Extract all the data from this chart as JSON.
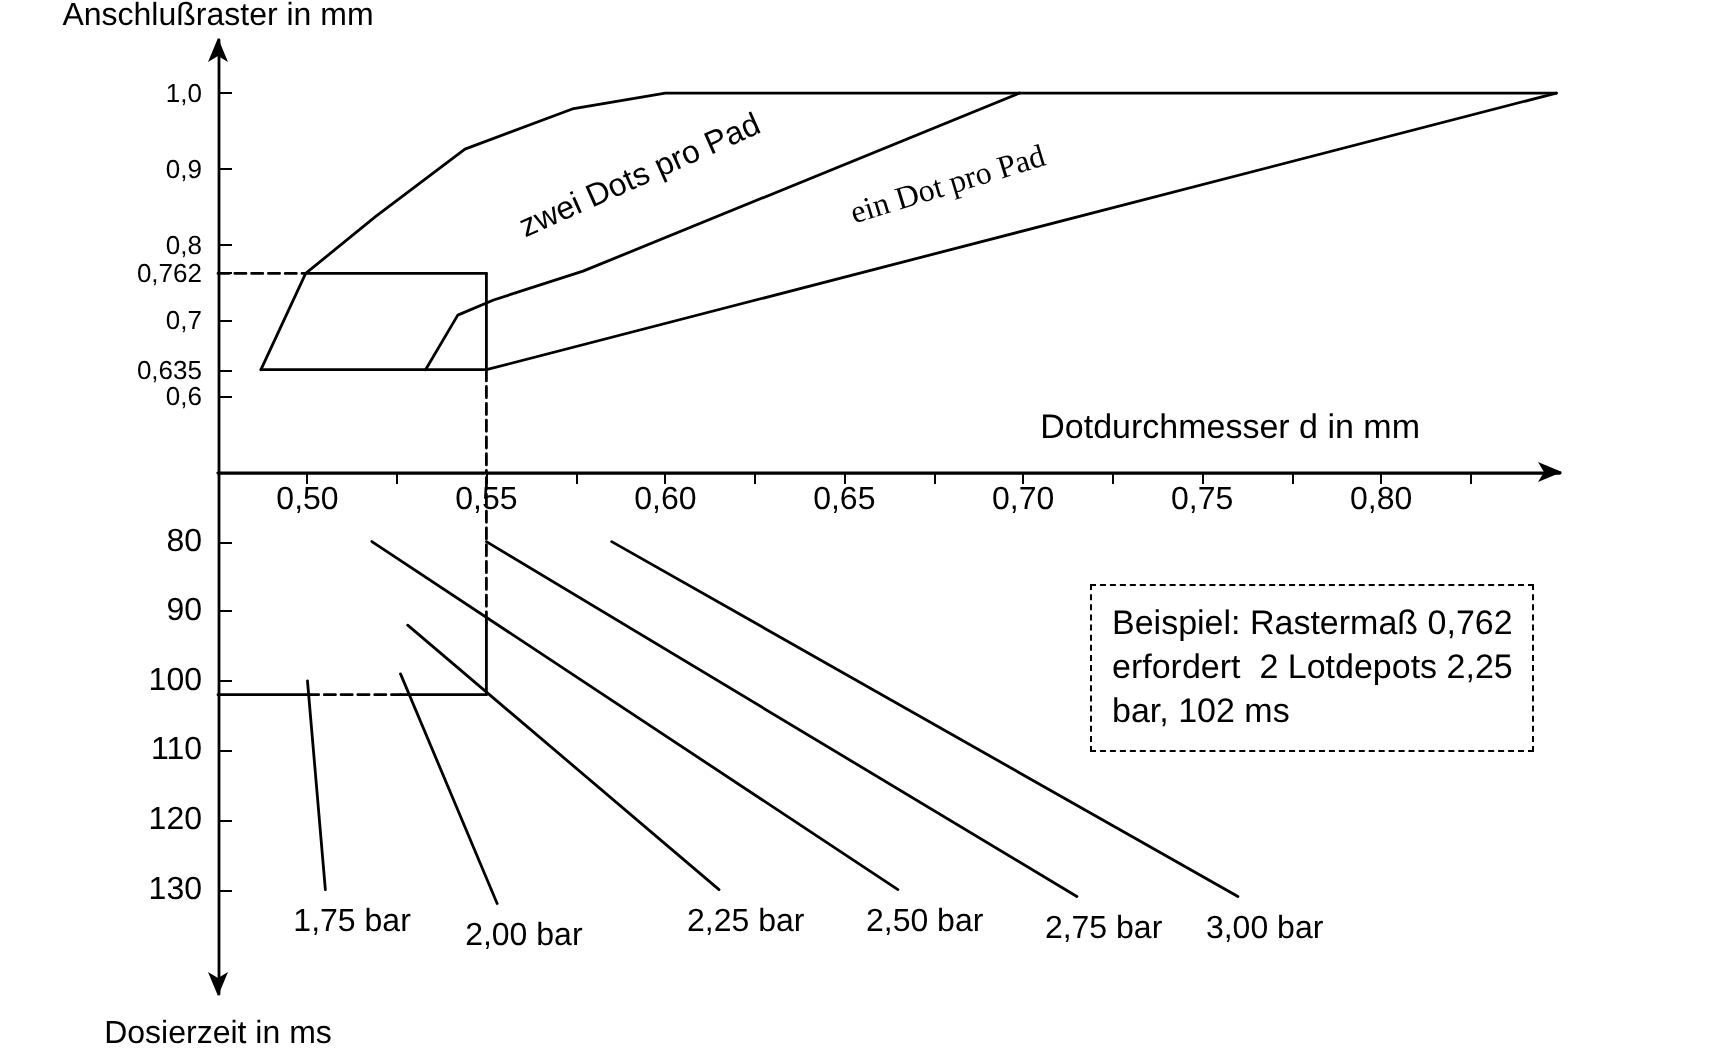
{
  "chart_data": [
    {
      "type": "line",
      "xlabel": "Dotdurchmesser d in mm",
      "ylabel": "Anschlußraster in mm",
      "xlim": [
        0.475,
        0.85
      ],
      "ylim": [
        0.5,
        1.07
      ],
      "xticks": [
        {
          "value": 0.5,
          "label": "0,50"
        },
        {
          "value": 0.525,
          "label": null
        },
        {
          "value": 0.55,
          "label": "0,55"
        },
        {
          "value": 0.575,
          "label": null
        },
        {
          "value": 0.6,
          "label": "0,60"
        },
        {
          "value": 0.625,
          "label": null
        },
        {
          "value": 0.65,
          "label": "0,65"
        },
        {
          "value": 0.675,
          "label": null
        },
        {
          "value": 0.7,
          "label": "0,70"
        },
        {
          "value": 0.725,
          "label": null
        },
        {
          "value": 0.75,
          "label": "0,75"
        },
        {
          "value": 0.775,
          "label": null
        },
        {
          "value": 0.8,
          "label": "0,80"
        },
        {
          "value": 0.825,
          "label": null
        }
      ],
      "yticks": [
        {
          "value": 0.6,
          "label": "0,6"
        },
        {
          "value": 0.635,
          "label": "0,635"
        },
        {
          "value": 0.7,
          "label": "0,7"
        },
        {
          "value": 0.762,
          "label": "0,762"
        },
        {
          "value": 0.8,
          "label": "0,8"
        },
        {
          "value": 0.9,
          "label": "0,9"
        },
        {
          "value": 1.0,
          "label": "1,0"
        }
      ],
      "grid": false,
      "legend": false,
      "line_style": "solid",
      "series": [
        {
          "color": "#000000",
          "x": [
            0.487,
            0.4995,
            0.519,
            0.544,
            0.574,
            0.6,
            0.849
          ],
          "values": [
            0.635,
            0.762,
            0.837,
            0.926,
            0.979,
            1.0,
            1.0
          ]
        },
        {
          "color": "#000000",
          "x": [
            0.487,
            0.55,
            0.849
          ],
          "values": [
            0.635,
            0.635,
            1.0
          ]
        },
        {
          "color": "#000000",
          "x": [
            0.533,
            0.542,
            0.552,
            0.577,
            0.699
          ],
          "values": [
            0.635,
            0.707,
            0.727,
            0.765,
            1.0
          ]
        },
        {
          "color": "#000000",
          "line_style": "dashed",
          "x": [
            0.475,
            0.4995
          ],
          "values": [
            0.762,
            0.762
          ]
        },
        {
          "color": "#000000",
          "x": [
            0.4995,
            0.55
          ],
          "values": [
            0.762,
            0.762
          ]
        },
        {
          "color": "#000000",
          "x": [
            0.55,
            0.55
          ],
          "values": [
            0.762,
            0.635
          ]
        },
        {
          "color": "#000000",
          "line_style": "dashed",
          "x": [
            0.55,
            0.55
          ],
          "values": [
            0.635,
            0.5
          ]
        }
      ],
      "annotations": [
        "zwei Dots pro Pad",
        "ein Dot pro Pad"
      ]
    },
    {
      "type": "line",
      "ylabel": "Dosierzeit in ms",
      "xlim": [
        0.475,
        0.85
      ],
      "ylim": [
        145,
        70
      ],
      "yticks": [
        80,
        90,
        100,
        110,
        120,
        130
      ],
      "tick_labels": "y",
      "grid": false,
      "legend": false,
      "line_style": "solid",
      "series": [
        {
          "name": "1,75 bar",
          "color": "#000000",
          "x": [
            0.5,
            0.505
          ],
          "values": [
            100,
            130
          ]
        },
        {
          "name": "2,00 bar",
          "color": "#000000",
          "x": [
            0.526,
            0.553
          ],
          "values": [
            99,
            132
          ]
        },
        {
          "name": "2,25 bar",
          "color": "#000000",
          "x": [
            0.528,
            0.615
          ],
          "values": [
            92,
            130
          ]
        },
        {
          "name": "2,50 bar",
          "color": "#000000",
          "x": [
            0.518,
            0.665
          ],
          "values": [
            80,
            130
          ]
        },
        {
          "name": "2,75 bar",
          "color": "#000000",
          "x": [
            0.55,
            0.715
          ],
          "values": [
            80,
            131
          ]
        },
        {
          "name": "3,00 bar",
          "color": "#000000",
          "x": [
            0.585,
            0.76
          ],
          "values": [
            80,
            131
          ]
        },
        {
          "color": "#000000",
          "x": [
            0.475,
            0.5
          ],
          "values": [
            102,
            102
          ]
        },
        {
          "color": "#000000",
          "line_style": "dashed",
          "x": [
            0.5,
            0.526
          ],
          "values": [
            102,
            102
          ]
        },
        {
          "color": "#000000",
          "x": [
            0.526,
            0.55
          ],
          "values": [
            102,
            102
          ]
        },
        {
          "color": "#000000",
          "x": [
            0.55,
            0.55
          ],
          "values": [
            102,
            91.7
          ]
        },
        {
          "color": "#000000",
          "line_style": "dashed",
          "x": [
            0.55,
            0.55
          ],
          "values": [
            91.7,
            70
          ]
        }
      ],
      "annotations": [
        "Beispiel: Rastermaß 0,762\nerfordert  2 Lotdepots 2,25\nbar, 102 ms"
      ]
    }
  ]
}
